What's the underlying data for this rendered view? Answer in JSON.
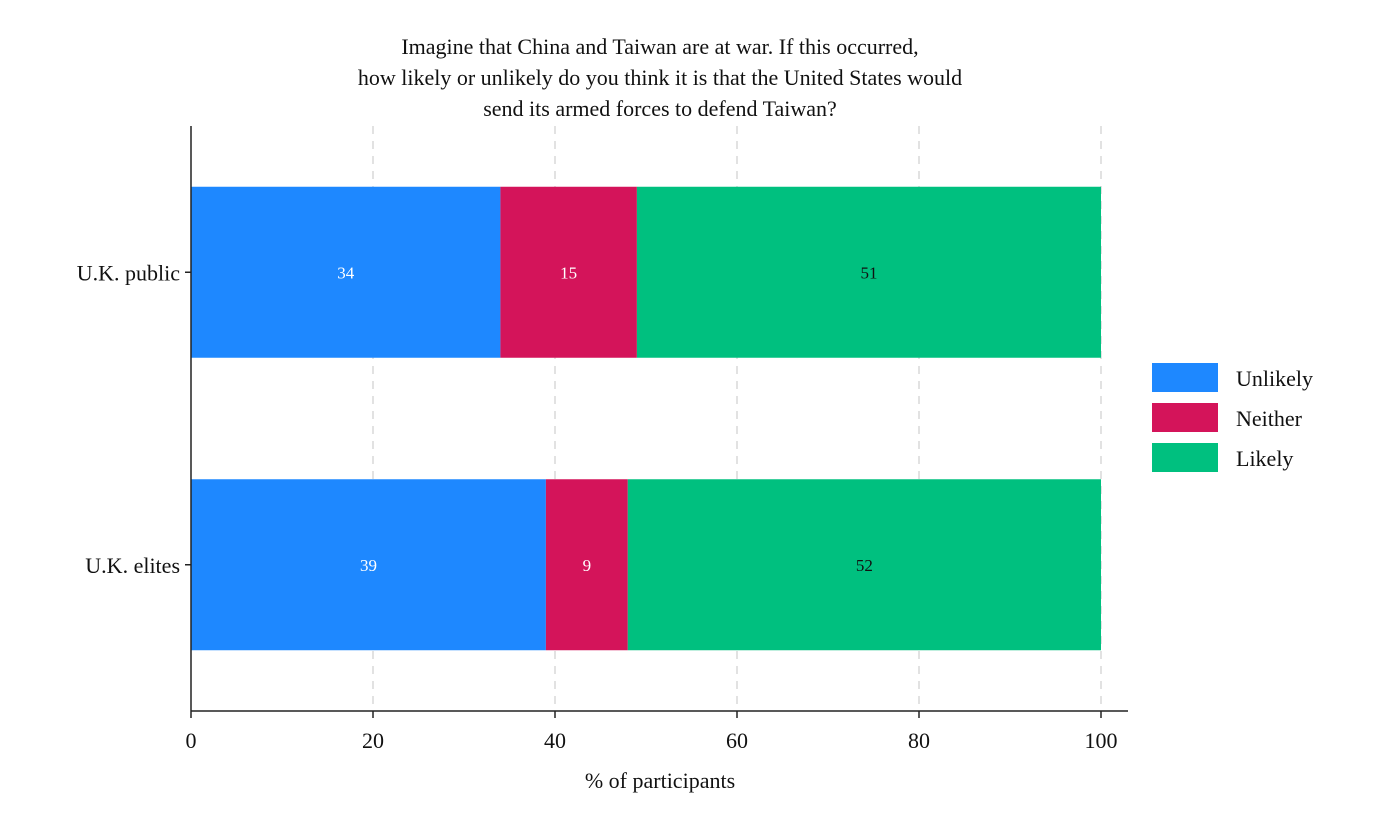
{
  "chart_data": {
    "type": "bar",
    "orientation": "horizontal",
    "stacked": true,
    "title_lines": [
      "Imagine that China and Taiwan are at war. If this occurred,",
      "how likely or unlikely do you think it is that the United States would",
      "send its armed forces to defend Taiwan?"
    ],
    "categories": [
      "U.K. public",
      "U.K. elites"
    ],
    "series": [
      {
        "name": "Unlikely",
        "values": [
          34,
          39
        ],
        "color": "#1e88ff",
        "label_color": "#ffffff"
      },
      {
        "name": "Neither",
        "values": [
          15,
          9
        ],
        "color": "#d4145a",
        "label_color": "#ffffff"
      },
      {
        "name": "Likely",
        "values": [
          51,
          52
        ],
        "color": "#00c07f",
        "label_color": "#111111"
      }
    ],
    "xlabel": "% of participants",
    "ylabel": "",
    "xlim": [
      0,
      100
    ],
    "xticks": [
      0,
      20,
      40,
      60,
      80,
      100
    ],
    "grid": "vertical dashed",
    "legend_position": "right"
  }
}
